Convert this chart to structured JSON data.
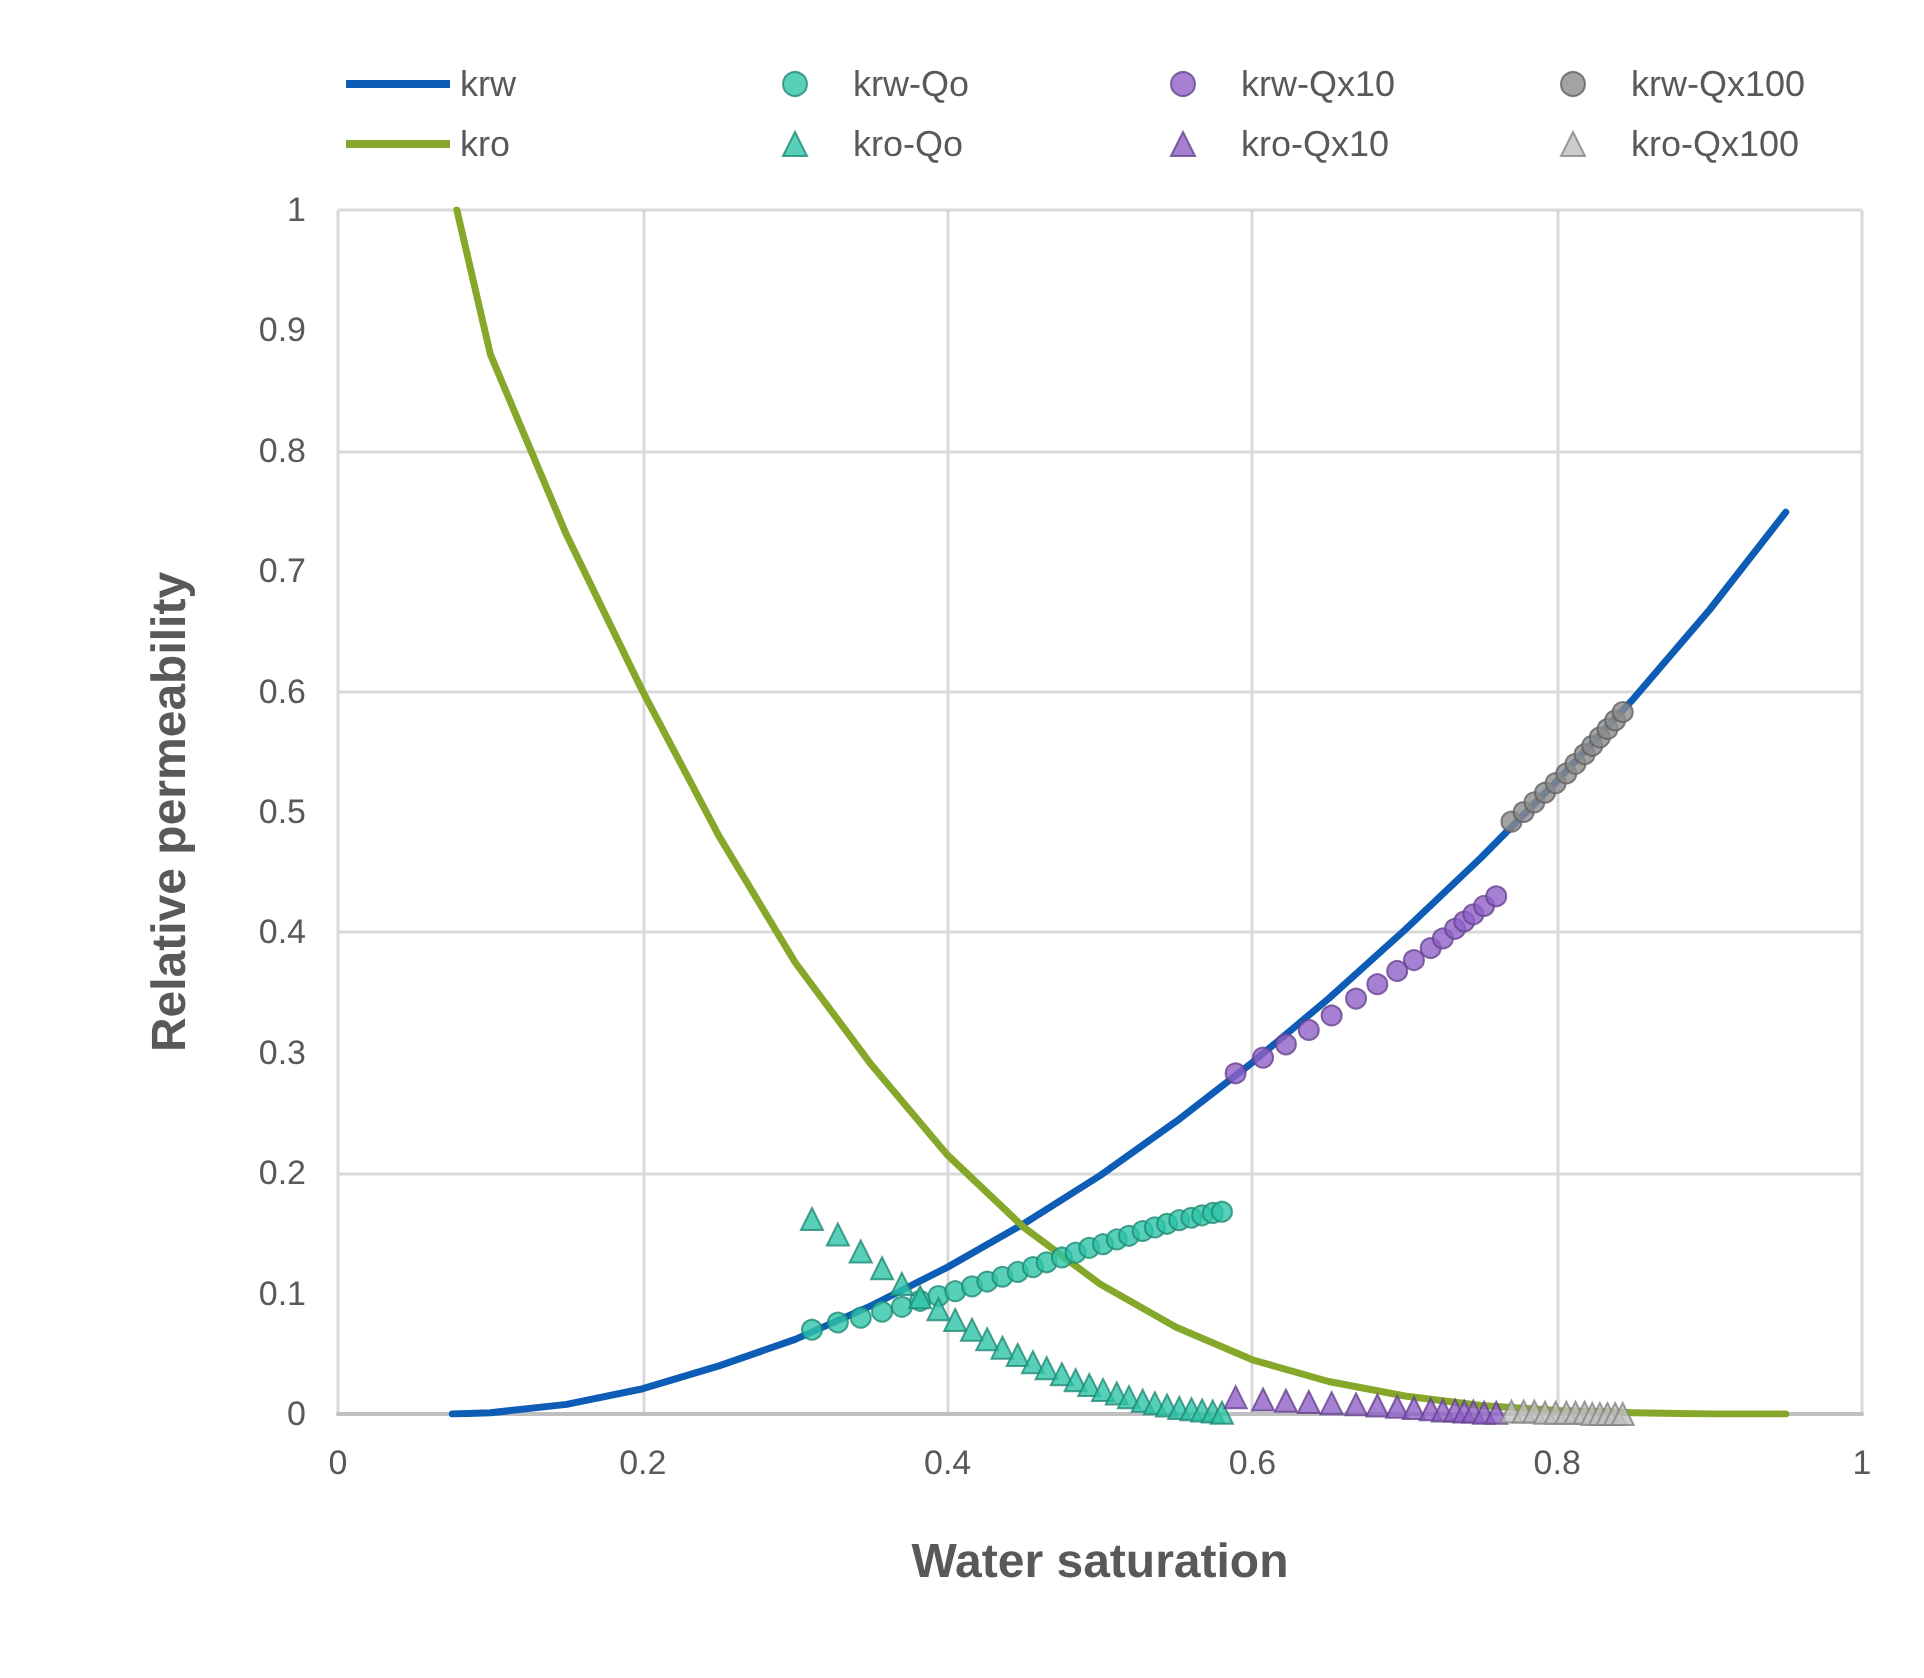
{
  "chart_data": {
    "type": "line",
    "xlabel": "Water saturation",
    "ylabel": "Relative permeability",
    "xlim": [
      0,
      1
    ],
    "ylim": [
      0,
      1
    ],
    "xticks": [
      0,
      0.2,
      0.4,
      0.6,
      0.8,
      1
    ],
    "yticks": [
      0,
      0.1,
      0.2,
      0.3,
      0.4,
      0.5,
      0.6,
      0.7,
      0.8,
      0.9,
      1
    ],
    "grid": true,
    "legend": "top",
    "line_style": "solid",
    "series": [
      {
        "name": "krw",
        "marker": "none",
        "color": "#0d5cb5",
        "x": [
          0.075,
          0.1,
          0.15,
          0.2,
          0.25,
          0.3,
          0.35,
          0.4,
          0.45,
          0.5,
          0.55,
          0.6,
          0.65,
          0.7,
          0.75,
          0.8,
          0.85,
          0.9,
          0.95
        ],
        "values": [
          0,
          0.001,
          0.008,
          0.021,
          0.04,
          0.062,
          0.09,
          0.122,
          0.158,
          0.198,
          0.243,
          0.292,
          0.345,
          0.402,
          0.462,
          0.526,
          0.594,
          0.668,
          0.749
        ]
      },
      {
        "name": "kro",
        "marker": "none",
        "color": "#86a82a",
        "x": [
          0.078,
          0.1,
          0.15,
          0.2,
          0.25,
          0.3,
          0.35,
          0.4,
          0.45,
          0.5,
          0.55,
          0.6,
          0.65,
          0.7,
          0.75,
          0.8,
          0.85,
          0.9,
          0.95
        ],
        "values": [
          1,
          0.88,
          0.73,
          0.6,
          0.48,
          0.375,
          0.29,
          0.215,
          0.155,
          0.108,
          0.072,
          0.045,
          0.027,
          0.015,
          0.007,
          0.003,
          0.001,
          0,
          0
        ]
      },
      {
        "name": "krw-Qo",
        "type": "scatter",
        "marker": "circle",
        "color": "#2ec4a8",
        "x": [
          0.311,
          0.328,
          0.343,
          0.357,
          0.37,
          0.382,
          0.394,
          0.405,
          0.416,
          0.426,
          0.436,
          0.446,
          0.456,
          0.465,
          0.475,
          0.484,
          0.493,
          0.502,
          0.511,
          0.519,
          0.528,
          0.536,
          0.544,
          0.552,
          0.56,
          0.567,
          0.574,
          0.58
        ],
        "values": [
          0.07,
          0.076,
          0.08,
          0.085,
          0.089,
          0.094,
          0.098,
          0.102,
          0.106,
          0.11,
          0.114,
          0.118,
          0.122,
          0.126,
          0.13,
          0.134,
          0.138,
          0.141,
          0.145,
          0.148,
          0.152,
          0.155,
          0.158,
          0.161,
          0.163,
          0.165,
          0.167,
          0.168
        ]
      },
      {
        "name": "kro-Qo",
        "type": "scatter",
        "marker": "triangle",
        "color": "#2ec4a8",
        "x": [
          0.311,
          0.328,
          0.343,
          0.357,
          0.37,
          0.382,
          0.394,
          0.405,
          0.416,
          0.426,
          0.436,
          0.446,
          0.456,
          0.465,
          0.475,
          0.484,
          0.493,
          0.502,
          0.511,
          0.519,
          0.528,
          0.536,
          0.544,
          0.552,
          0.56,
          0.567,
          0.574,
          0.58
        ],
        "values": [
          0.162,
          0.149,
          0.135,
          0.121,
          0.108,
          0.097,
          0.087,
          0.078,
          0.07,
          0.062,
          0.055,
          0.049,
          0.043,
          0.038,
          0.033,
          0.028,
          0.024,
          0.02,
          0.017,
          0.014,
          0.011,
          0.009,
          0.007,
          0.005,
          0.004,
          0.003,
          0.002,
          0.001
        ]
      },
      {
        "name": "krw-Qx10",
        "type": "scatter",
        "marker": "circle",
        "color": "#9060c8",
        "x": [
          0.589,
          0.607,
          0.622,
          0.637,
          0.652,
          0.668,
          0.682,
          0.695,
          0.706,
          0.717,
          0.725,
          0.733,
          0.739,
          0.745,
          0.752,
          0.76
        ],
        "values": [
          0.283,
          0.296,
          0.307,
          0.319,
          0.331,
          0.345,
          0.357,
          0.368,
          0.377,
          0.387,
          0.395,
          0.403,
          0.409,
          0.415,
          0.422,
          0.43
        ]
      },
      {
        "name": "kro-Qx10",
        "type": "scatter",
        "marker": "triangle",
        "color": "#9060c8",
        "x": [
          0.589,
          0.607,
          0.622,
          0.637,
          0.652,
          0.668,
          0.682,
          0.695,
          0.706,
          0.717,
          0.725,
          0.733,
          0.739,
          0.745,
          0.752,
          0.76
        ],
        "values": [
          0.014,
          0.012,
          0.011,
          0.01,
          0.009,
          0.008,
          0.007,
          0.006,
          0.005,
          0.004,
          0.003,
          0.003,
          0.002,
          0.002,
          0.001,
          0.001
        ]
      },
      {
        "name": "krw-Qx100",
        "type": "scatter",
        "marker": "circle",
        "color": "#8c8c8c",
        "x": [
          0.77,
          0.778,
          0.785,
          0.792,
          0.799,
          0.806,
          0.812,
          0.818,
          0.823,
          0.828,
          0.833,
          0.838,
          0.843
        ],
        "values": [
          0.492,
          0.5,
          0.508,
          0.516,
          0.524,
          0.532,
          0.54,
          0.548,
          0.555,
          0.562,
          0.569,
          0.576,
          0.583
        ]
      },
      {
        "name": "kro-Qx100",
        "type": "scatter",
        "marker": "triangle",
        "color": "#bfbfbf",
        "x": [
          0.77,
          0.778,
          0.785,
          0.792,
          0.799,
          0.806,
          0.812,
          0.818,
          0.823,
          0.828,
          0.833,
          0.838,
          0.843
        ],
        "values": [
          0.002,
          0.002,
          0.002,
          0.001,
          0.001,
          0.001,
          0.001,
          0.001,
          0,
          0,
          0,
          0,
          0
        ]
      }
    ]
  }
}
